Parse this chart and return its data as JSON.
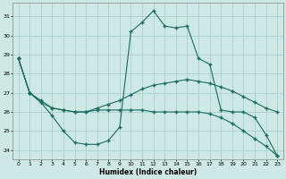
{
  "xlabel": "Humidex (Indice chaleur)",
  "background_color": "#cde8e5",
  "grid_color": "#aacfcc",
  "line_color": "#1a6b60",
  "xlim": [
    -0.5,
    23.5
  ],
  "ylim": [
    23.5,
    31.7
  ],
  "yticks": [
    24,
    25,
    26,
    27,
    28,
    29,
    30,
    31
  ],
  "xticks": [
    0,
    1,
    2,
    3,
    4,
    5,
    6,
    7,
    8,
    9,
    10,
    11,
    12,
    13,
    14,
    15,
    16,
    17,
    18,
    19,
    20,
    21,
    22,
    23
  ],
  "line1_x": [
    0,
    1,
    2,
    3,
    4,
    5,
    6,
    7,
    8,
    9,
    10,
    11,
    12,
    13,
    14,
    15,
    16,
    17,
    18,
    19,
    20,
    21,
    22,
    23
  ],
  "line1_y": [
    28.8,
    27.0,
    26.6,
    26.2,
    26.1,
    26.0,
    26.0,
    26.2,
    26.4,
    26.6,
    26.9,
    27.2,
    27.4,
    27.5,
    27.6,
    27.7,
    27.6,
    27.5,
    27.3,
    27.1,
    26.8,
    26.5,
    26.2,
    26.0
  ],
  "line2_x": [
    0,
    1,
    2,
    3,
    4,
    5,
    6,
    7,
    8,
    9,
    10,
    11,
    12,
    13,
    14,
    15,
    16,
    17,
    18,
    19,
    20,
    21,
    22,
    23
  ],
  "line2_y": [
    28.8,
    27.0,
    26.5,
    25.8,
    25.0,
    24.4,
    24.3,
    24.3,
    24.5,
    25.2,
    30.2,
    30.7,
    31.3,
    30.5,
    30.4,
    30.5,
    28.8,
    28.5,
    26.1,
    26.0,
    26.0,
    25.7,
    24.8,
    23.7
  ],
  "line3_x": [
    0,
    1,
    2,
    3,
    4,
    5,
    6,
    7,
    8,
    9,
    10,
    11,
    12,
    13,
    14,
    15,
    16,
    17,
    18,
    19,
    20,
    21,
    22,
    23
  ],
  "line3_y": [
    28.8,
    27.0,
    26.5,
    26.2,
    26.1,
    26.0,
    26.0,
    26.1,
    26.1,
    26.1,
    26.1,
    26.1,
    26.0,
    26.0,
    26.0,
    26.0,
    26.0,
    25.9,
    25.7,
    25.4,
    25.0,
    24.6,
    24.2,
    23.7
  ]
}
